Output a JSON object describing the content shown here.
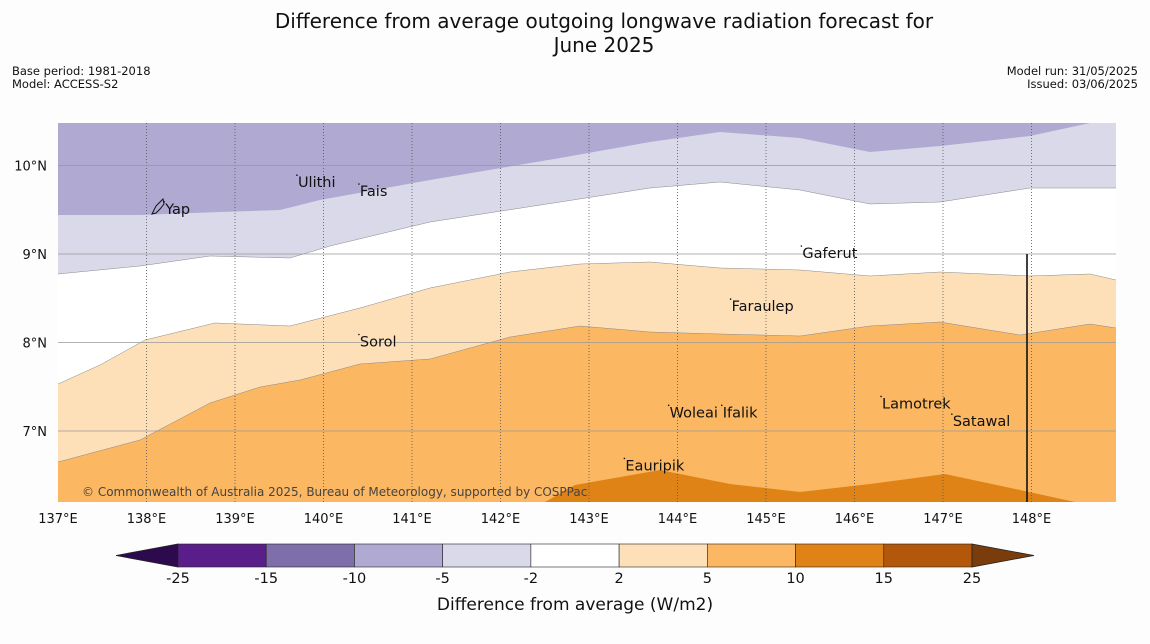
{
  "title": {
    "line1": "Difference from average outgoing longwave radiation forecast for",
    "line2": "June 2025"
  },
  "meta": {
    "base_period": "Base period: 1981-2018",
    "model": "Model: ACCESS-S2",
    "model_run": "Model run: 31/05/2025",
    "issued": "Issued: 03/06/2025"
  },
  "map": {
    "lon_range": [
      137,
      149
    ],
    "lat_range": [
      6.2,
      10.5
    ],
    "lon_ticks": [
      "137°E",
      "138°E",
      "139°E",
      "140°E",
      "141°E",
      "142°E",
      "143°E",
      "144°E",
      "145°E",
      "146°E",
      "147°E",
      "148°E"
    ],
    "lat_ticks": [
      "10°N",
      "9°N",
      "8°N",
      "7°N"
    ],
    "places": [
      {
        "name": "Ulithi",
        "lon": 139.7,
        "lat": 9.8
      },
      {
        "name": "Fais",
        "lon": 140.4,
        "lat": 9.7
      },
      {
        "name": "Yap",
        "lon": 138.2,
        "lat": 9.5
      },
      {
        "name": "Gaferut",
        "lon": 145.4,
        "lat": 9.0
      },
      {
        "name": "Faraulep",
        "lon": 144.6,
        "lat": 8.4
      },
      {
        "name": "Sorol",
        "lon": 140.4,
        "lat": 8.0
      },
      {
        "name": "Woleai",
        "lon": 143.9,
        "lat": 7.2
      },
      {
        "name": "Ifalik",
        "lon": 144.5,
        "lat": 7.2
      },
      {
        "name": "Lamotrek",
        "lon": 146.3,
        "lat": 7.3
      },
      {
        "name": "Satawal",
        "lon": 147.1,
        "lat": 7.1
      },
      {
        "name": "Eauripik",
        "lon": 143.4,
        "lat": 6.6
      }
    ],
    "credit": "© Commonwealth of Australia 2025, Bureau of Meteorology, supported by COSPPac"
  },
  "colorbar": {
    "label": "Difference from average (W/m2)",
    "ticks": [
      "-25",
      "-15",
      "-10",
      "-5",
      "-2",
      "2",
      "5",
      "10",
      "15",
      "25"
    ],
    "colors": {
      "below_min": "#2d0a4e",
      "bins": [
        "#5a1e8a",
        "#7e6fab",
        "#b0a9d2",
        "#d9d9ea",
        "#ffffff",
        "#fde0b8",
        "#fbb762",
        "#e08316",
        "#b3580a"
      ],
      "above_max": "#7a3c0a"
    }
  }
}
